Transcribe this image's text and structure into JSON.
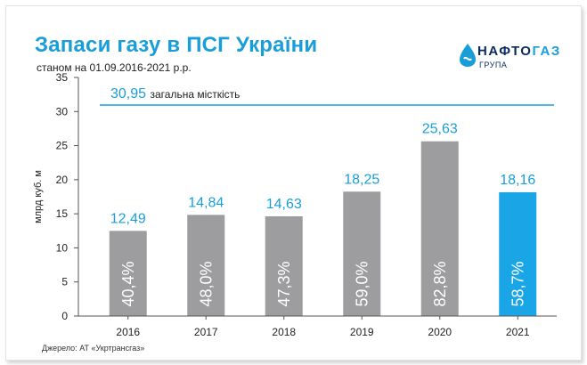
{
  "header": {
    "title": "Запаси газу в ПСГ України",
    "subtitle": "станом на 01.09.2016-2021 р.р."
  },
  "logo": {
    "name_main": "НАФТО",
    "name_accent": "ГАЗ",
    "sub": "ГРУПА"
  },
  "source": "Джерело: АТ «Укртрансгаз»",
  "colors": {
    "accent": "#1a9ed9",
    "bar_default": "#9d9d9f",
    "bar_highlight": "#1aa5e6"
  },
  "chart_data": {
    "type": "bar",
    "categories": [
      "2016",
      "2017",
      "2018",
      "2019",
      "2020",
      "2021"
    ],
    "values": [
      12.49,
      14.84,
      14.63,
      18.25,
      25.63,
      18.16
    ],
    "value_labels": [
      "12,49",
      "14,84",
      "14,63",
      "18,25",
      "25,63",
      "18,16"
    ],
    "percent_labels": [
      "40,4%",
      "48,0%",
      "47,3%",
      "59,0%",
      "82,8%",
      "58,7%"
    ],
    "highlight_index": 5,
    "ylabel": "млрд куб. м",
    "ylim": [
      0,
      35
    ],
    "yticks": [
      0,
      5,
      10,
      15,
      20,
      25,
      30,
      35
    ],
    "grid": false,
    "reference_line": {
      "value": 30.95,
      "value_label": "30,95",
      "label": "загальна місткість"
    }
  }
}
